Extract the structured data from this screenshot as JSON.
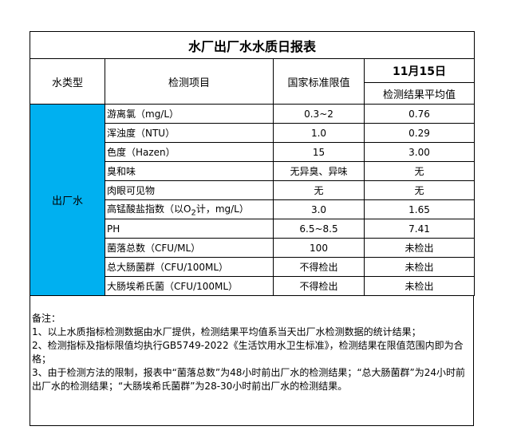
{
  "title": "水厂出厂水水质日报表",
  "headers": {
    "type": "水类型",
    "item": "检测项目",
    "standard": "国家标准限值",
    "date": "11月15日",
    "result": "检测结果平均值"
  },
  "water_type": "出厂水",
  "rows": [
    {
      "item": "游离氯（mg/L）",
      "standard": "0.3~2",
      "result": "0.76"
    },
    {
      "item": "浑浊度（NTU）",
      "standard": "1.0",
      "result": "0.29"
    },
    {
      "item": "色度（Hazen）",
      "standard": "15",
      "result": "3.00"
    },
    {
      "item": "臭和味",
      "standard": "无异臭、异味",
      "result": "无"
    },
    {
      "item": "肉眼可见物",
      "standard": "无",
      "result": "无"
    },
    {
      "item_pre": "高锰酸盐指数（以O",
      "item_sub": "2",
      "item_post": "计，mg/L）",
      "standard": "3.0",
      "result": "1.65"
    },
    {
      "item": "PH",
      "standard": "6.5~8.5",
      "result": "7.41"
    },
    {
      "item": "菌落总数（CFU/ML）",
      "standard": "100",
      "result": "未检出"
    },
    {
      "item": "总大肠菌群（CFU/100ML）",
      "standard": "不得检出",
      "result": "未检出"
    },
    {
      "item": "大肠埃希氏菌（CFU/100ML）",
      "standard": "不得检出",
      "result": "未检出"
    }
  ],
  "notes": {
    "label": "备注：",
    "lines": [
      "1、以上水质指标检测数据由水厂提供，检测结果平均值系当天出厂水检测数据的统计结果；",
      "2、检测指标及指标限值均执行GB5749-2022《生活饮用水卫生标准》，检测结果在限值范围内即为合格；",
      "3、由于检测方法的限制，报表中“菌落总数”为48小时前出厂水的检测结果；“总大肠菌群”为24小时前出厂水的检测结果；“大肠埃希氏菌群”为28-30小时前出厂水的检测结果。"
    ]
  },
  "colors": {
    "water_type_bg": "#00b0f0"
  }
}
